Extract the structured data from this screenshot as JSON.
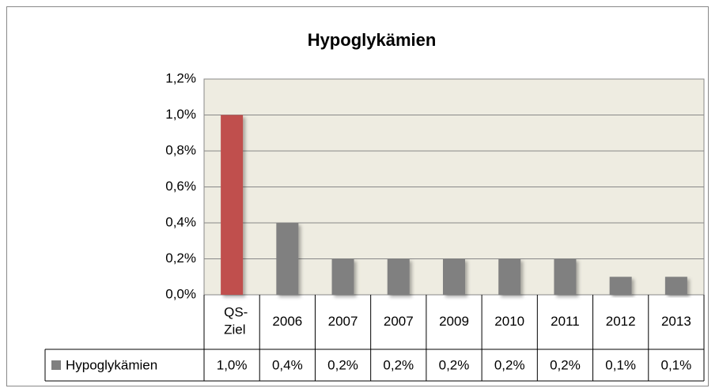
{
  "chart_data": {
    "type": "bar",
    "title": "Hypoglykämien",
    "categories": [
      "QS-Ziel",
      "2006",
      "2007",
      "2007",
      "2009",
      "2010",
      "2011",
      "2012",
      "2013"
    ],
    "series": [
      {
        "name": "Hypoglykämien",
        "color": "#808080",
        "bar_colors": [
          "#c0504d",
          "#808080",
          "#808080",
          "#808080",
          "#808080",
          "#808080",
          "#808080",
          "#808080",
          "#808080"
        ],
        "values": [
          1.0,
          0.4,
          0.2,
          0.2,
          0.2,
          0.2,
          0.2,
          0.1,
          0.1
        ],
        "value_labels": [
          "1,0%",
          "0,4%",
          "0,2%",
          "0,2%",
          "0,2%",
          "0,2%",
          "0,2%",
          "0,1%",
          "0,1%"
        ]
      }
    ],
    "ylim": [
      0,
      1.2
    ],
    "yticks": [
      {
        "value": 0,
        "label": "0,0%"
      },
      {
        "value": 0.2,
        "label": "0,2%"
      },
      {
        "value": 0.4,
        "label": "0,4%"
      },
      {
        "value": 0.6,
        "label": "0,6%"
      },
      {
        "value": 0.8,
        "label": "0,8%"
      },
      {
        "value": 1.0,
        "label": "1,0%"
      },
      {
        "value": 1.2,
        "label": "1,2%"
      }
    ],
    "grid": true,
    "plot_background": "#eeece1"
  }
}
